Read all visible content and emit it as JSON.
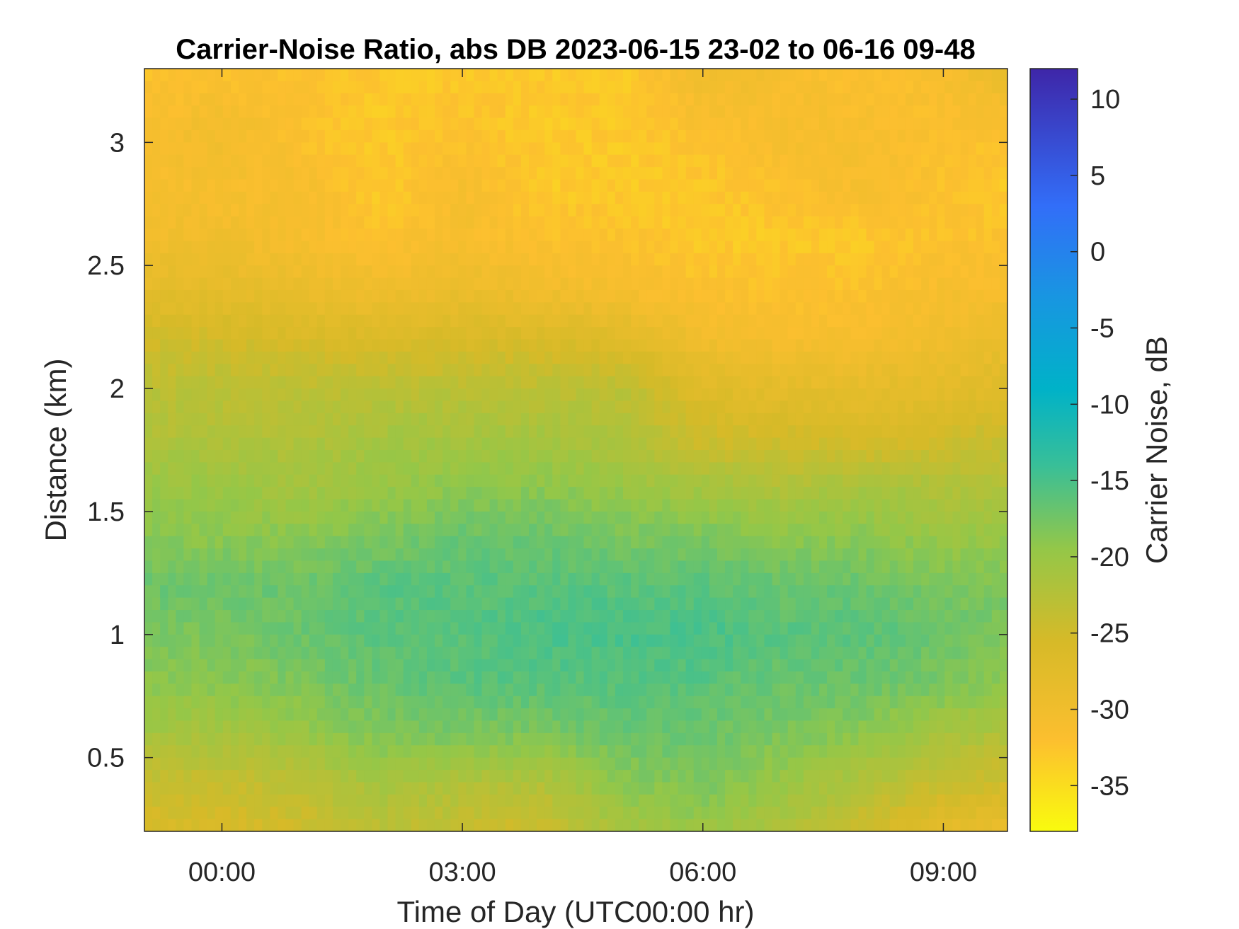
{
  "chart_data": {
    "type": "heatmap",
    "title": "Carrier-Noise Ratio, abs DB 2023-06-15 23-02 to 06-16 09-48",
    "xlabel": "Time of Day (UTC00:00 hr)",
    "ylabel": "Distance (km)",
    "colorbar_label": "Carrier Noise, dB",
    "x_ticks": [
      "00:00",
      "03:00",
      "06:00",
      "09:00"
    ],
    "y_ticks": [
      "0.5",
      "1",
      "1.5",
      "2",
      "2.5",
      "3"
    ],
    "colorbar_ticks": [
      "10",
      "5",
      "0",
      "-5",
      "-10",
      "-15",
      "-20",
      "-25",
      "-30",
      "-35"
    ],
    "xlim": [
      "2023-06-15 23:02",
      "2023-06-16 09:48"
    ],
    "ylim": [
      0.2,
      3.3
    ],
    "clim": [
      -38,
      12
    ],
    "colormap": "parula",
    "grid": false,
    "profile": {
      "distance_km": [
        0.2,
        0.4,
        0.6,
        0.8,
        1.0,
        1.2,
        1.4,
        1.6,
        1.8,
        2.0,
        2.2,
        2.4,
        2.6,
        2.8,
        3.0,
        3.3
      ],
      "time": [
        "23:02",
        "00:00",
        "01:00",
        "02:00",
        "03:00",
        "04:00",
        "05:00",
        "06:00",
        "07:00",
        "08:00",
        "09:00",
        "09:48"
      ],
      "cnr_db": [
        [
          -26,
          -26,
          -25,
          -23,
          -24,
          -25,
          -21,
          -20,
          -22,
          -25,
          -28,
          -29
        ],
        [
          -24,
          -24,
          -23,
          -21,
          -22,
          -22,
          -19,
          -18,
          -20,
          -22,
          -24,
          -25
        ],
        [
          -21,
          -21,
          -20,
          -18,
          -18,
          -18,
          -17,
          -17,
          -18,
          -19,
          -21,
          -22
        ],
        [
          -19,
          -19,
          -18,
          -17,
          -16,
          -16,
          -16,
          -16,
          -17,
          -17,
          -18,
          -19
        ],
        [
          -18,
          -18,
          -17,
          -16,
          -16,
          -15,
          -15,
          -15,
          -16,
          -16,
          -17,
          -18
        ],
        [
          -17,
          -17,
          -17,
          -16,
          -16,
          -16,
          -16,
          -16,
          -17,
          -17,
          -18,
          -18
        ],
        [
          -19,
          -19,
          -19,
          -18,
          -17,
          -17,
          -18,
          -18,
          -19,
          -19,
          -20,
          -20
        ],
        [
          -20,
          -20,
          -21,
          -20,
          -19,
          -19,
          -20,
          -21,
          -22,
          -21,
          -22,
          -22
        ],
        [
          -22,
          -22,
          -22,
          -21,
          -21,
          -21,
          -22,
          -25,
          -25,
          -26,
          -25,
          -24
        ],
        [
          -23,
          -23,
          -23,
          -23,
          -23,
          -23,
          -23,
          -27,
          -28,
          -28,
          -28,
          -27
        ],
        [
          -25,
          -25,
          -26,
          -26,
          -26,
          -26,
          -27,
          -30,
          -31,
          -31,
          -30,
          -29
        ],
        [
          -28,
          -28,
          -29,
          -30,
          -29,
          -30,
          -31,
          -32,
          -32,
          -32,
          -31,
          -31
        ],
        [
          -30,
          -30,
          -31,
          -32,
          -31,
          -32,
          -32,
          -33,
          -33,
          -33,
          -32,
          -32
        ],
        [
          -31,
          -31,
          -31,
          -33,
          -31,
          -33,
          -33,
          -33,
          -32,
          -31,
          -32,
          -33
        ],
        [
          -31,
          -30,
          -32,
          -33,
          -32,
          -33,
          -33,
          -32,
          -31,
          -31,
          -32,
          -32
        ],
        [
          -32,
          -32,
          -32,
          -33,
          -33,
          -33,
          -33,
          -30,
          -31,
          -32,
          -31,
          -29
        ]
      ]
    }
  }
}
